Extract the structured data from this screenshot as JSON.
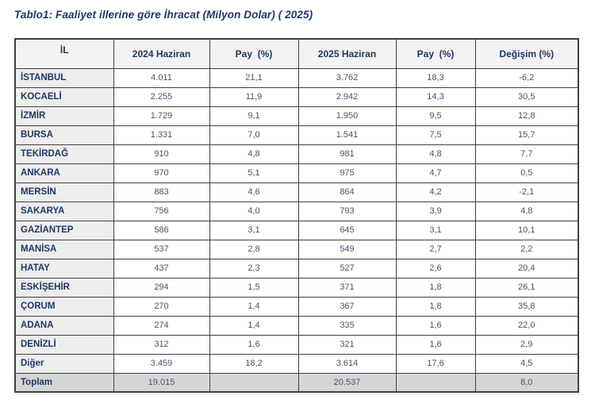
{
  "page": {
    "title": "Tablo1: Faaliyet illerine göre İhracat (Milyon Dolar) ( 2025)"
  },
  "colors": {
    "heading_navy": "#1f3864",
    "value_text": "#44546a",
    "header_bg": "#f2f2f2",
    "label_col_bg": "#ededed",
    "total_row_bg": "#d5d5d5",
    "border": "#404040"
  },
  "table": {
    "columns": [
      "İL",
      "2024 Haziran",
      "Pay  (%)",
      "2025 Haziran",
      "Pay  (%)",
      "Değişim (%)"
    ],
    "rows": [
      [
        "İSTANBUL",
        "4.011",
        "21,1",
        "3.762",
        "18,3",
        "-6,2"
      ],
      [
        "KOCAELİ",
        "2.255",
        "11,9",
        "2.942",
        "14,3",
        "30,5"
      ],
      [
        "İZMİR",
        "1.729",
        "9,1",
        "1.950",
        "9,5",
        "12,8"
      ],
      [
        "BURSA",
        "1.331",
        "7,0",
        "1.541",
        "7,5",
        "15,7"
      ],
      [
        "TEKİRDAĞ",
        "910",
        "4,8",
        "981",
        "4,8",
        "7,7"
      ],
      [
        "ANKARA",
        "970",
        "5,1",
        "975",
        "4,7",
        "0,5"
      ],
      [
        "MERSİN",
        "883",
        "4,6",
        "864",
        "4,2",
        "-2,1"
      ],
      [
        "SAKARYA",
        "756",
        "4,0",
        "793",
        "3,9",
        "4,8"
      ],
      [
        "GAZİANTEP",
        "586",
        "3,1",
        "645",
        "3,1",
        "10,1"
      ],
      [
        "MANİSA",
        "537",
        "2,8",
        "549",
        "2,7",
        "2,2"
      ],
      [
        "HATAY",
        "437",
        "2,3",
        "527",
        "2,6",
        "20,4"
      ],
      [
        "ESKİŞEHİR",
        "294",
        "1,5",
        "371",
        "1,8",
        "26,1"
      ],
      [
        "ÇORUM",
        "270",
        "1,4",
        "367",
        "1,8",
        "35,8"
      ],
      [
        "ADANA",
        "274",
        "1,4",
        "335",
        "1,6",
        "22,0"
      ],
      [
        "DENİZLİ",
        "312",
        "1,6",
        "321",
        "1,6",
        "2,9"
      ],
      [
        "Diğer",
        "3.459",
        "18,2",
        "3.614",
        "17,6",
        "4,5"
      ]
    ],
    "total_row": [
      "Toplam",
      "19.015",
      "",
      "20.537",
      "",
      "8,0"
    ]
  }
}
